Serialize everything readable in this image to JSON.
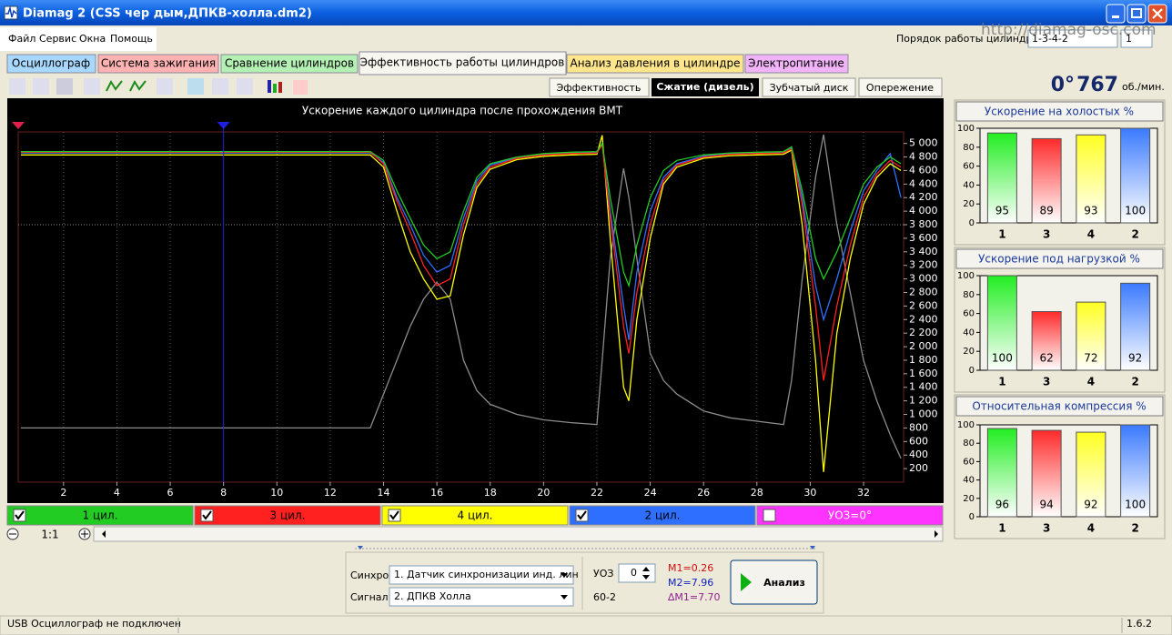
{
  "window": {
    "title": "Diamag 2 (CSS чер дым,ДПКВ-холла.dm2)",
    "url": "http://diamag-osc.com"
  },
  "menu": [
    "Файл",
    "Сервис",
    "Окна",
    "Помощь"
  ],
  "cylinder_order": {
    "label": "Порядок работы цилиндров",
    "value": "1-3-4-2",
    "select2": "1"
  },
  "tabs": [
    "Осциллограф",
    "Система зажигания",
    "Сравнение цилиндров",
    "Эффективность работы цилиндров",
    "Анализ давления в цилиндре",
    "Электропитание"
  ],
  "subtabs": [
    "Эффективность",
    "Сжатие (дизель)",
    "Зубчатый диск",
    "Опережение"
  ],
  "readout": {
    "angle": "0°",
    "rpm": 767,
    "unit": "об./мин."
  },
  "chart_data": [
    {
      "type": "line",
      "title": "Ускорение каждого цилиндра после прохождения ВМТ",
      "x": [
        0.4,
        2,
        4,
        6,
        8,
        10,
        12,
        13.5,
        14,
        14.5,
        15,
        15.5,
        16,
        16.5,
        17,
        17.5,
        18,
        19,
        20,
        21,
        22,
        22.2,
        22.5,
        23,
        23.2,
        23.5,
        24,
        24.5,
        25,
        26,
        27,
        28,
        29,
        29.3,
        29.7,
        30.2,
        30.5,
        31,
        31.5,
        32,
        32.5,
        33,
        33.4
      ],
      "series": [
        {
          "name": "1 цил.",
          "color": "#22cc22",
          "values": [
            4880,
            4880,
            4880,
            4880,
            4880,
            4880,
            4880,
            4880,
            4750,
            4300,
            3900,
            3500,
            3300,
            3400,
            4000,
            4500,
            4700,
            4800,
            4850,
            4870,
            4880,
            5000,
            4200,
            3100,
            2900,
            3500,
            4200,
            4600,
            4750,
            4830,
            4860,
            4870,
            4880,
            4950,
            4300,
            3300,
            3000,
            3400,
            3900,
            4400,
            4650,
            4800,
            4700
          ]
        },
        {
          "name": "3 цил.",
          "color": "#ff2020",
          "values": [
            4870,
            4870,
            4870,
            4870,
            4870,
            4870,
            4870,
            4870,
            4700,
            4150,
            3700,
            3200,
            2900,
            3000,
            3800,
            4400,
            4650,
            4780,
            4830,
            4850,
            4860,
            4980,
            3900,
            2300,
            1900,
            2800,
            3800,
            4450,
            4680,
            4800,
            4840,
            4850,
            4860,
            4920,
            4100,
            2600,
            1500,
            2600,
            3500,
            4200,
            4550,
            4750,
            4650
          ]
        },
        {
          "name": "4 цил.",
          "color": "#ffff00",
          "values": [
            4830,
            4830,
            4830,
            4830,
            4830,
            4830,
            4830,
            4830,
            4650,
            4000,
            3400,
            3000,
            2700,
            2750,
            3650,
            4350,
            4620,
            4760,
            4810,
            4830,
            4840,
            5120,
            3600,
            1400,
            1200,
            2400,
            3600,
            4400,
            4650,
            4780,
            4820,
            4830,
            4840,
            4900,
            3800,
            1800,
            150,
            2200,
            3300,
            4100,
            4500,
            4700,
            4600
          ]
        },
        {
          "name": "2 цил.",
          "color": "#2f6fff",
          "values": [
            4860,
            4860,
            4860,
            4860,
            4860,
            4860,
            4860,
            4860,
            4720,
            4200,
            3800,
            3350,
            3100,
            3200,
            3900,
            4450,
            4680,
            4790,
            4840,
            4860,
            4870,
            4990,
            4000,
            2600,
            2100,
            3100,
            4000,
            4500,
            4700,
            4810,
            4850,
            4860,
            4870,
            4930,
            4200,
            2900,
            2400,
            3000,
            3700,
            4300,
            4600,
            4850,
            4200
          ]
        },
        {
          "color": "#8c8c8c",
          "values": [
            800,
            800,
            800,
            800,
            800,
            800,
            800,
            800,
            1300,
            1800,
            2300,
            2700,
            2950,
            2700,
            1800,
            1350,
            1150,
            1000,
            920,
            880,
            850,
            1800,
            3300,
            4630,
            4200,
            3300,
            1900,
            1500,
            1300,
            1050,
            950,
            900,
            850,
            1500,
            3000,
            4500,
            5130,
            3800,
            2800,
            1800,
            1200,
            700,
            350
          ]
        }
      ],
      "extra_legend": "УОЗ=0°",
      "xlim": [
        0.3,
        33.5
      ],
      "xticks": [
        2,
        4,
        6,
        8,
        10,
        12,
        14,
        16,
        18,
        20,
        22,
        24,
        26,
        28,
        30,
        32
      ],
      "ylim": [
        0,
        5170
      ],
      "yticks": [
        200,
        400,
        600,
        800,
        {
          "value": 1000,
          "label": "1 000"
        },
        {
          "value": 1200,
          "label": "1 200"
        },
        {
          "value": 1400,
          "label": "1 400"
        },
        {
          "value": 1600,
          "label": "1 600"
        },
        {
          "value": 1800,
          "label": "1 800"
        },
        {
          "value": 2000,
          "label": "2 000"
        },
        {
          "value": 2200,
          "label": "2 200"
        },
        {
          "value": 2400,
          "label": "2 400"
        },
        {
          "value": 2600,
          "label": "2 600"
        },
        {
          "value": 2800,
          "label": "2 800"
        },
        {
          "value": 3000,
          "label": "3 000"
        },
        {
          "value": 3200,
          "label": "3 200"
        },
        {
          "value": 3400,
          "label": "3 400"
        },
        {
          "value": 3600,
          "label": "3 600"
        },
        {
          "value": 3800,
          "label": "3 800"
        },
        {
          "value": 4000,
          "label": "4 000"
        },
        {
          "value": 4200,
          "label": "4 200"
        },
        {
          "value": 4400,
          "label": "4 400"
        },
        {
          "value": 4600,
          "label": "4 600"
        },
        {
          "value": 4800,
          "label": "4 800"
        },
        {
          "value": 5000,
          "label": "5 000"
        }
      ],
      "hlines": [
        3800
      ],
      "cursors": [
        {
          "x": 0.3,
          "color": "#e0204a"
        },
        {
          "x": 8,
          "color": "#2020e0"
        }
      ],
      "xgrid": true
    },
    {
      "type": "bar",
      "title": "Ускорение на холостых %",
      "categories": [
        "1",
        "3",
        "4",
        "2"
      ],
      "values": [
        95,
        89,
        93,
        100
      ],
      "colors": [
        "#22ee22",
        "#ff2a2a",
        "#ffff22",
        "#3a7aff"
      ],
      "ylim": [
        0,
        100
      ],
      "yticks": [
        0,
        20,
        40,
        60,
        80,
        100
      ]
    },
    {
      "type": "bar",
      "title": "Ускорение под нагрузкой %",
      "categories": [
        "1",
        "3",
        "4",
        "2"
      ],
      "values": [
        100,
        62,
        72,
        92
      ],
      "colors": [
        "#22ee22",
        "#ff2a2a",
        "#ffff22",
        "#3a7aff"
      ],
      "ylim": [
        0,
        100
      ],
      "yticks": [
        0,
        20,
        40,
        60,
        80,
        100
      ]
    },
    {
      "type": "bar",
      "title": "Относительная компрессия %",
      "categories": [
        "1",
        "3",
        "4",
        "2"
      ],
      "values": [
        96,
        94,
        92,
        100
      ],
      "colors": [
        "#22ee22",
        "#ff2a2a",
        "#ffff22",
        "#3a7aff"
      ],
      "ylim": [
        0,
        100
      ],
      "yticks": [
        0,
        20,
        40,
        60,
        80,
        100
      ]
    }
  ],
  "zoom": "1:1",
  "controls": {
    "sync_label": "Синхро:",
    "sync_value": "1.  Датчик синхронизации инд. лин",
    "signal_label": "Сигнал:",
    "signal_value": "2.  ДПКВ Холла",
    "uoz_label": "УОЗ",
    "uoz_value": 0,
    "teeth": "60-2",
    "m1": "M1=0.26",
    "m2": "M2=7.96",
    "dm1": "∆M1=7.70",
    "button": "Анализ"
  },
  "status": {
    "left": "USB Осциллограф не подключен",
    "version": "1.6.2"
  }
}
